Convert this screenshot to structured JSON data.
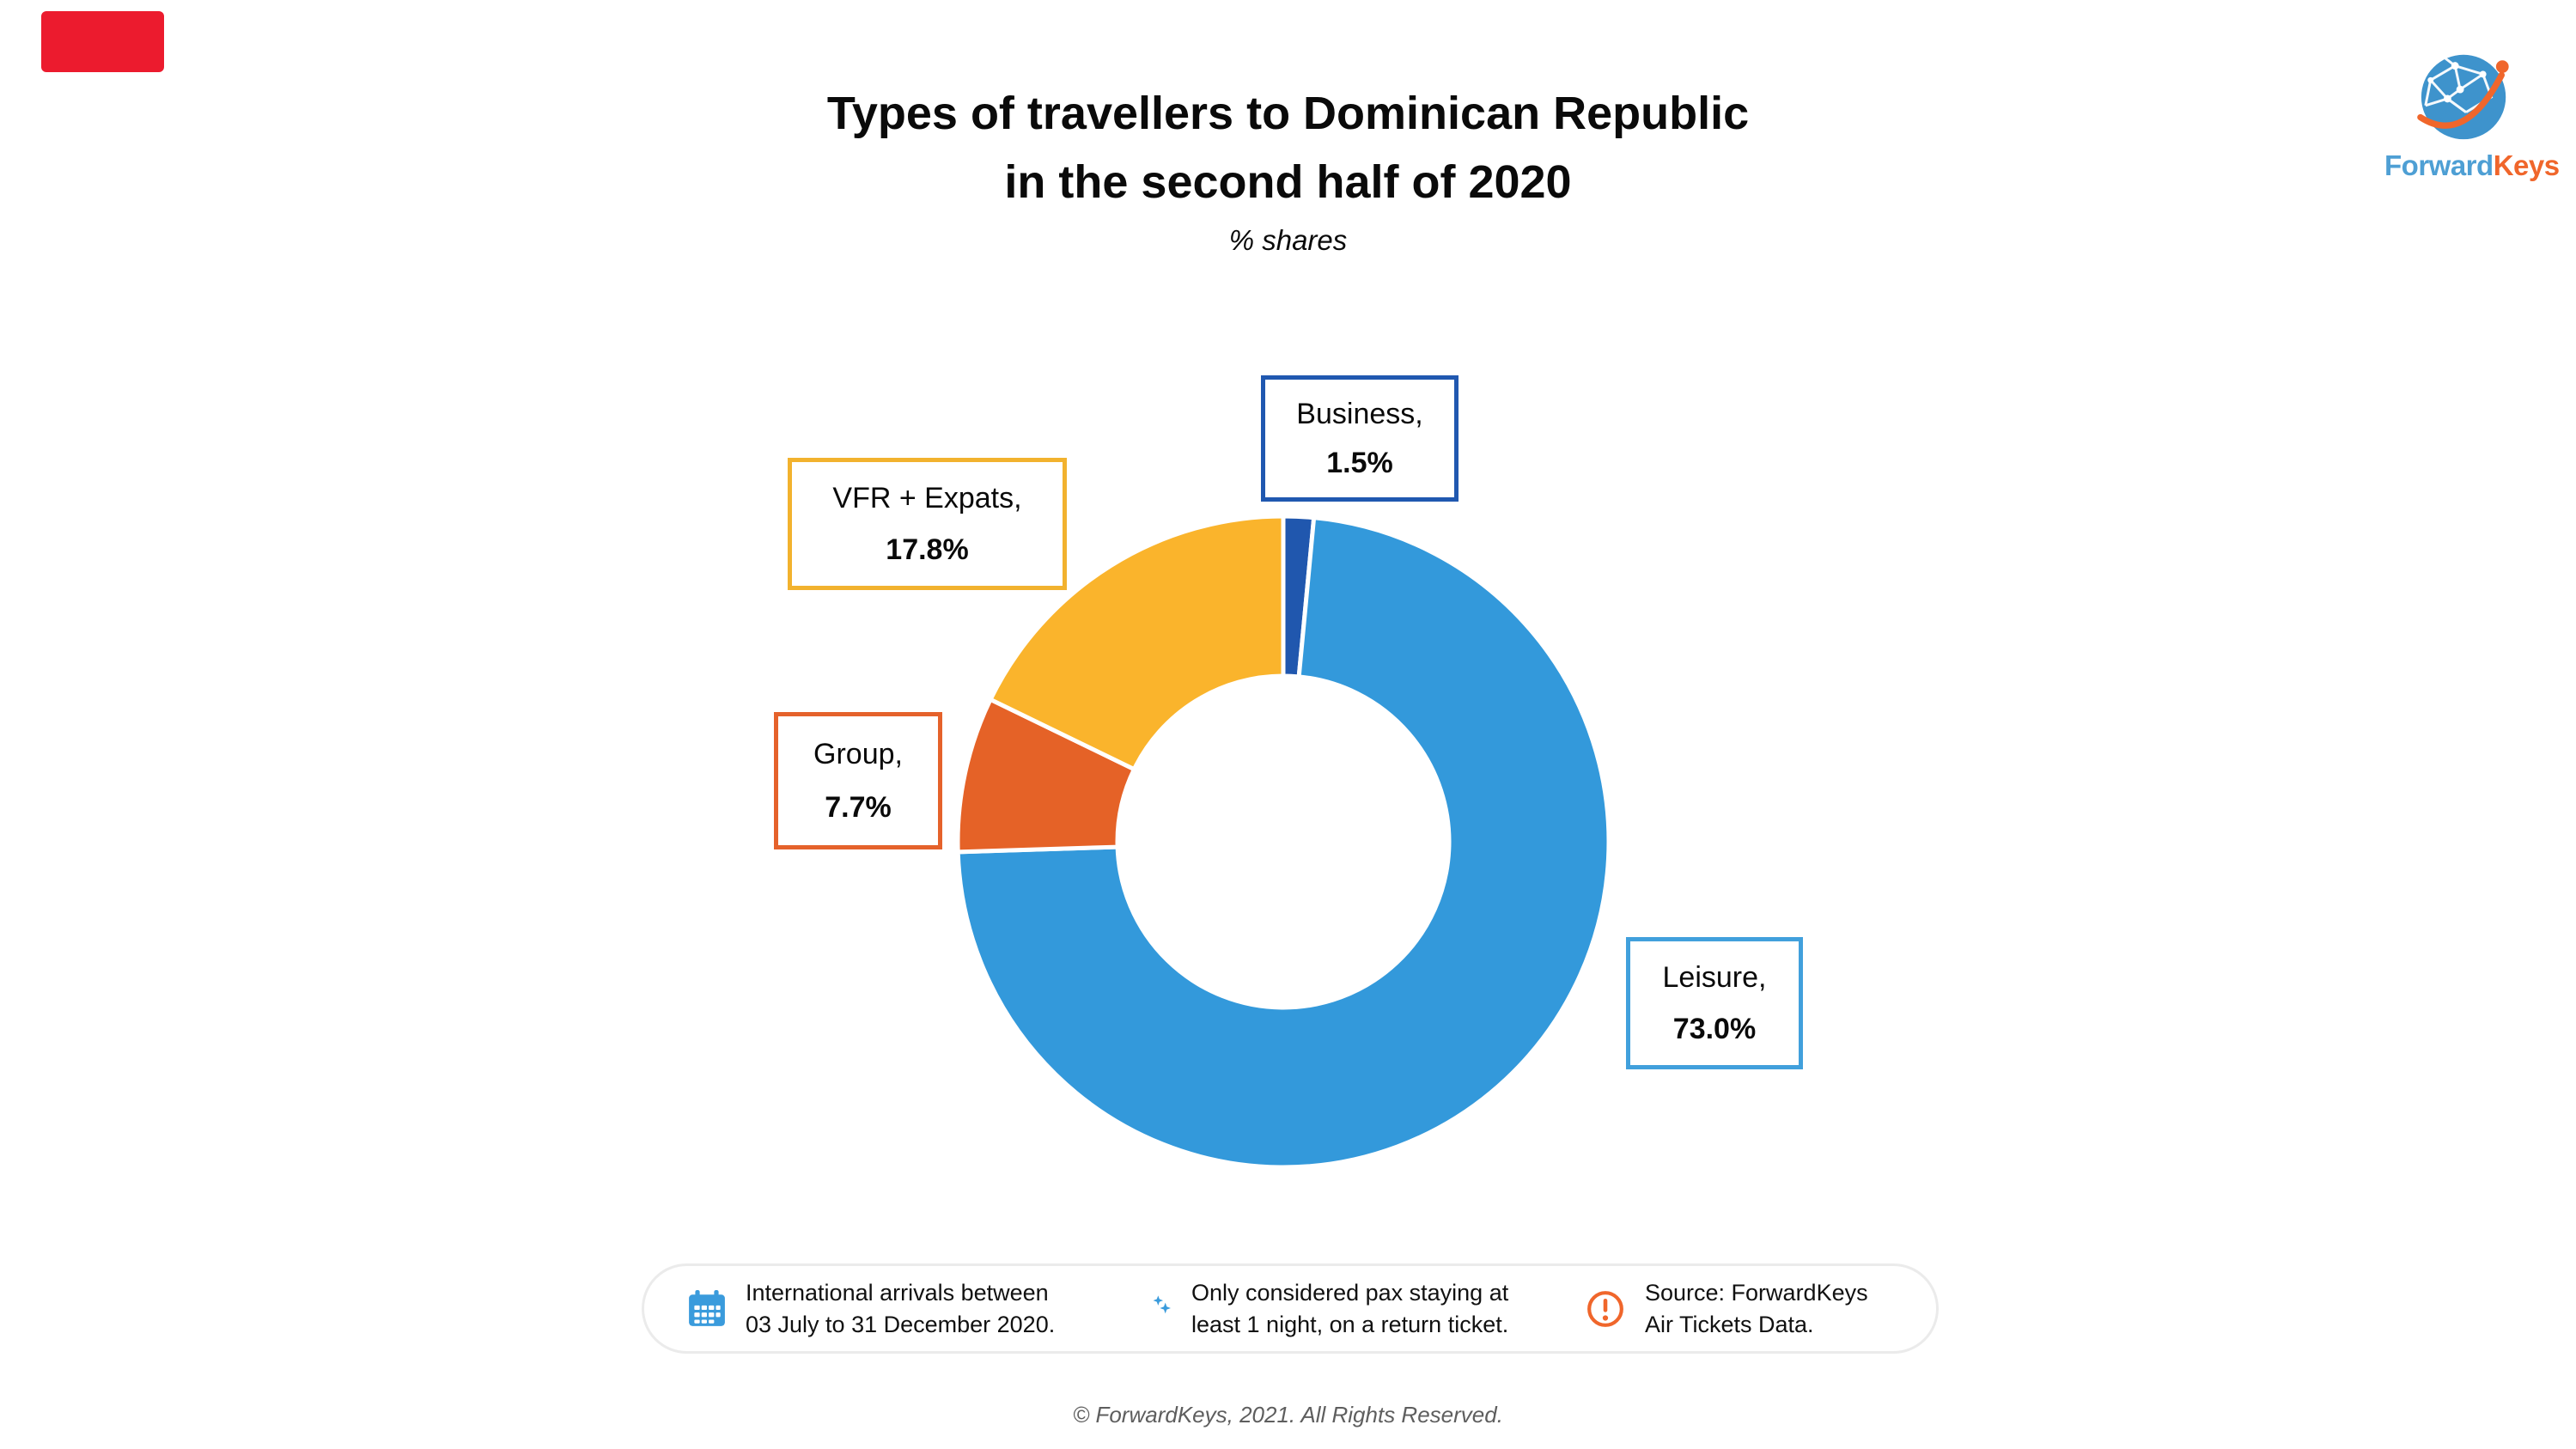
{
  "theme": {
    "background": "#FFFFFF",
    "accent_color": "#EC1B2E",
    "pill_border_color": "#EBEBEB"
  },
  "header": {
    "title_line1": "Types of travellers to Dominican Republic",
    "title_line2": "in the second half of 2020",
    "subtitle": "% shares"
  },
  "logo": {
    "name": "ForwardKeys",
    "part1": "Forward",
    "part2": "Keys",
    "part1_color": "#4E9FD4",
    "part2_color": "#F0662B",
    "globe_color": "#3E93CC",
    "swoosh_color": "#F0662B"
  },
  "chart_data": {
    "type": "pie",
    "variant": "donut",
    "title": "Types of travellers to Dominican Republic in the second half of 2020",
    "subtitle": "% shares",
    "units": "%",
    "start_angle_deg": 0,
    "direction": "clockwise",
    "donut_hole_ratio": 0.51,
    "slices": [
      {
        "label": "Business",
        "value": 1.5,
        "callout": "Business,",
        "pct": "1.5%",
        "color": "#2057AE",
        "box_color": "#2058B0"
      },
      {
        "label": "Leisure",
        "value": 73.0,
        "callout": "Leisure,",
        "pct": "73.0%",
        "color": "#3399DB",
        "box_color": "#41A0DC"
      },
      {
        "label": "Group",
        "value": 7.7,
        "callout": "Group,",
        "pct": "7.7%",
        "color": "#E56227",
        "box_color": "#E5622B"
      },
      {
        "label": "VFR + Expats",
        "value": 17.8,
        "callout": "VFR + Expats,",
        "pct": "17.8%",
        "color": "#FAB42C",
        "box_color": "#F2B22E"
      }
    ]
  },
  "footer": {
    "notes": [
      {
        "icon": "calendar-icon",
        "line1": "International arrivals between",
        "line2": "03 July to 31 December 2020."
      },
      {
        "icon": "moon-icon",
        "line1": "Only considered pax staying at",
        "line2": "least 1 night, on a return ticket."
      },
      {
        "icon": "warning-icon",
        "line1": "Source: ForwardKeys",
        "line2": "Air Tickets Data."
      }
    ],
    "copyright": "© ForwardKeys, 2021. All Rights Reserved."
  }
}
